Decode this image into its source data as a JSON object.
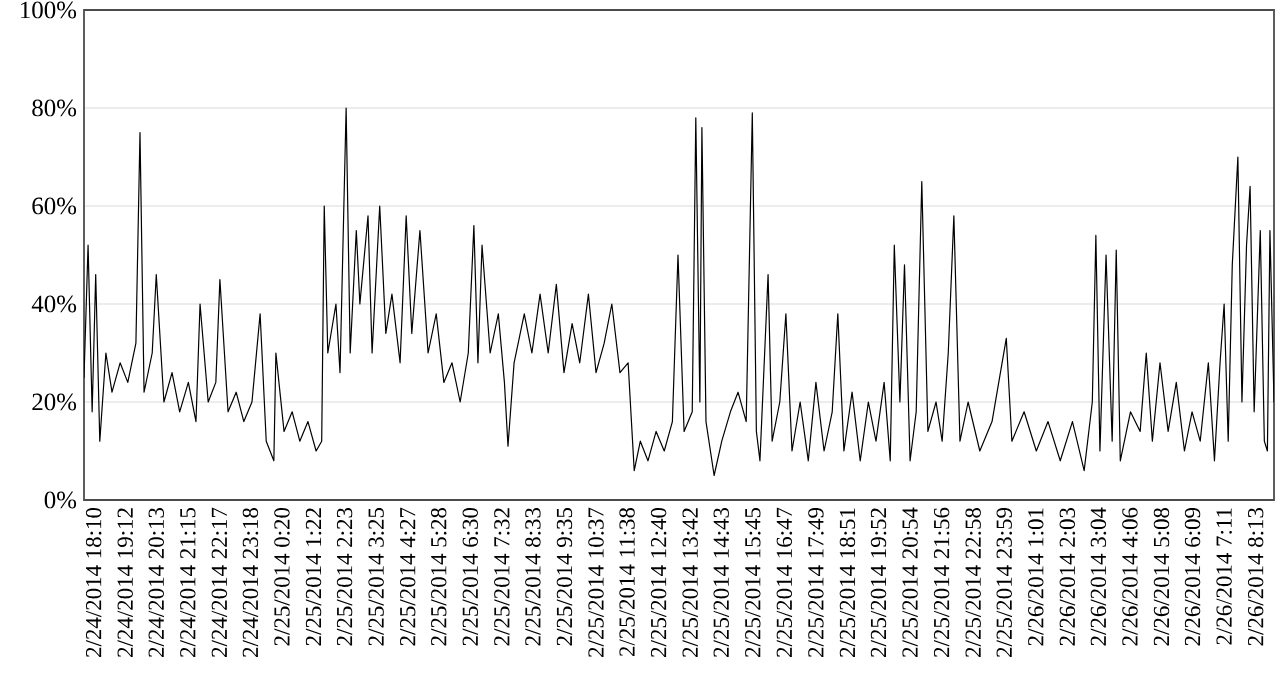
{
  "chart_data": {
    "type": "line",
    "color": "#000000",
    "grid": "y",
    "xlim": [
      "2014-02-24T17:51",
      "2014-02-26T08:49"
    ],
    "ylim": [
      0,
      100
    ],
    "yticks": [
      {
        "value": 0,
        "label": "0%"
      },
      {
        "value": 20,
        "label": "20%"
      },
      {
        "value": 40,
        "label": "40%"
      },
      {
        "value": 60,
        "label": "60%"
      },
      {
        "value": 80,
        "label": "80%"
      },
      {
        "value": 100,
        "label": "100%"
      }
    ],
    "xticks": [
      {
        "value": "2014-02-24T18:10",
        "label": "2/24/2014 18:10"
      },
      {
        "value": "2014-02-24T19:12",
        "label": "2/24/2014 19:12"
      },
      {
        "value": "2014-02-24T20:13",
        "label": "2/24/2014 20:13"
      },
      {
        "value": "2014-02-24T21:15",
        "label": "2/24/2014 21:15"
      },
      {
        "value": "2014-02-24T22:17",
        "label": "2/24/2014 22:17"
      },
      {
        "value": "2014-02-24T23:18",
        "label": "2/24/2014 23:18"
      },
      {
        "value": "2014-02-25T00:20",
        "label": "2/25/2014 0:20"
      },
      {
        "value": "2014-02-25T01:22",
        "label": "2/25/2014 1:22"
      },
      {
        "value": "2014-02-25T02:23",
        "label": "2/25/2014 2:23"
      },
      {
        "value": "2014-02-25T03:25",
        "label": "2/25/2014 3:25"
      },
      {
        "value": "2014-02-25T04:27",
        "label": "2/25/2014 4:27"
      },
      {
        "value": "2014-02-25T05:28",
        "label": "2/25/2014 5:28"
      },
      {
        "value": "2014-02-25T06:30",
        "label": "2/25/2014 6:30"
      },
      {
        "value": "2014-02-25T07:32",
        "label": "2/25/2014 7:32"
      },
      {
        "value": "2014-02-25T08:33",
        "label": "2/25/2014 8:33"
      },
      {
        "value": "2014-02-25T09:35",
        "label": "2/25/2014 9:35"
      },
      {
        "value": "2014-02-25T10:37",
        "label": "2/25/2014 10:37"
      },
      {
        "value": "2014-02-25T11:38",
        "label": "2/25/2014 11:38"
      },
      {
        "value": "2014-02-25T12:40",
        "label": "2/25/2014 12:40"
      },
      {
        "value": "2014-02-25T13:42",
        "label": "2/25/2014 13:42"
      },
      {
        "value": "2014-02-25T14:43",
        "label": "2/25/2014 14:43"
      },
      {
        "value": "2014-02-25T15:45",
        "label": "2/25/2014 15:45"
      },
      {
        "value": "2014-02-25T16:47",
        "label": "2/25/2014 16:47"
      },
      {
        "value": "2014-02-25T17:49",
        "label": "2/25/2014 17:49"
      },
      {
        "value": "2014-02-25T18:51",
        "label": "2/25/2014 18:51"
      },
      {
        "value": "2014-02-25T19:52",
        "label": "2/25/2014 19:52"
      },
      {
        "value": "2014-02-25T20:54",
        "label": "2/25/2014 20:54"
      },
      {
        "value": "2014-02-25T21:56",
        "label": "2/25/2014 21:56"
      },
      {
        "value": "2014-02-25T22:58",
        "label": "2/25/2014 22:58"
      },
      {
        "value": "2014-02-25T23:59",
        "label": "2/25/2014 23:59"
      },
      {
        "value": "2014-02-26T01:01",
        "label": "2/26/2014 1:01"
      },
      {
        "value": "2014-02-26T02:03",
        "label": "2/26/2014 2:03"
      },
      {
        "value": "2014-02-26T03:04",
        "label": "2/26/2014 3:04"
      },
      {
        "value": "2014-02-26T04:06",
        "label": "2/26/2014 4:06"
      },
      {
        "value": "2014-02-26T05:08",
        "label": "2/26/2014 5:08"
      },
      {
        "value": "2014-02-26T06:09",
        "label": "2/26/2014 6:09"
      },
      {
        "value": "2014-02-26T07:11",
        "label": "2/26/2014 7:11"
      },
      {
        "value": "2014-02-26T08:13",
        "label": "2/26/2014 8:13"
      }
    ],
    "x": [
      "2014-02-24T17:51",
      "2014-02-24T17:59",
      "2014-02-24T18:07",
      "2014-02-24T18:14",
      "2014-02-24T18:22",
      "2014-02-24T18:34",
      "2014-02-24T18:46",
      "2014-02-24T19:02",
      "2014-02-24T19:17",
      "2014-02-24T19:33",
      "2014-02-24T19:41",
      "2014-02-24T19:49",
      "2014-02-24T20:05",
      "2014-02-24T20:13",
      "2014-02-24T20:28",
      "2014-02-24T20:44",
      "2014-02-24T20:59",
      "2014-02-24T21:16",
      "2014-02-24T21:31",
      "2014-02-24T21:39",
      "2014-02-24T21:55",
      "2014-02-24T22:10",
      "2014-02-24T22:18",
      "2014-02-24T22:34",
      "2014-02-24T22:50",
      "2014-02-24T23:05",
      "2014-02-24T23:21",
      "2014-02-24T23:37",
      "2014-02-24T23:49",
      "2014-02-25T00:04",
      "2014-02-25T00:08",
      "2014-02-25T00:24",
      "2014-02-25T00:40",
      "2014-02-25T00:55",
      "2014-02-25T01:11",
      "2014-02-25T01:27",
      "2014-02-25T01:38",
      "2014-02-25T01:43",
      "2014-02-25T01:50",
      "2014-02-25T02:06",
      "2014-02-25T02:14",
      "2014-02-25T02:26",
      "2014-02-25T02:34",
      "2014-02-25T02:46",
      "2014-02-25T02:53",
      "2014-02-25T03:09",
      "2014-02-25T03:17",
      "2014-02-25T03:32",
      "2014-02-25T03:44",
      "2014-02-25T03:56",
      "2014-02-25T04:12",
      "2014-02-25T04:24",
      "2014-02-25T04:35",
      "2014-02-25T04:51",
      "2014-02-25T05:07",
      "2014-02-25T05:23",
      "2014-02-25T05:38",
      "2014-02-25T05:54",
      "2014-02-25T06:10",
      "2014-02-25T06:26",
      "2014-02-25T06:37",
      "2014-02-25T06:45",
      "2014-02-25T06:53",
      "2014-02-25T07:09",
      "2014-02-25T07:25",
      "2014-02-25T07:37",
      "2014-02-25T07:44",
      "2014-02-25T07:56",
      "2014-02-25T08:16",
      "2014-02-25T08:31",
      "2014-02-25T08:47",
      "2014-02-25T09:03",
      "2014-02-25T09:19",
      "2014-02-25T09:34",
      "2014-02-25T09:50",
      "2014-02-25T10:05",
      "2014-02-25T10:22",
      "2014-02-25T10:37",
      "2014-02-25T10:53",
      "2014-02-25T11:08",
      "2014-02-25T11:24",
      "2014-02-25T11:40",
      "2014-02-25T11:52",
      "2014-02-25T12:04",
      "2014-02-25T12:19",
      "2014-02-25T12:35",
      "2014-02-25T12:51",
      "2014-02-25T13:07",
      "2014-02-25T13:18",
      "2014-02-25T13:30",
      "2014-02-25T13:46",
      "2014-02-25T13:53",
      "2014-02-25T14:01",
      "2014-02-25T14:05",
      "2014-02-25T14:13",
      "2014-02-25T14:29",
      "2014-02-25T14:44",
      "2014-02-25T15:01",
      "2014-02-25T15:16",
      "2014-02-25T15:32",
      "2014-02-25T15:44",
      "2014-02-25T15:52",
      "2014-02-25T15:59",
      "2014-02-25T16:15",
      "2014-02-25T16:23",
      "2014-02-25T16:38",
      "2014-02-25T16:50",
      "2014-02-25T17:02",
      "2014-02-25T17:18",
      "2014-02-25T17:34",
      "2014-02-25T17:49",
      "2014-02-25T18:05",
      "2014-02-25T18:21",
      "2014-02-25T18:32",
      "2014-02-25T18:44",
      "2014-02-25T19:00",
      "2014-02-25T19:16",
      "2014-02-25T19:32",
      "2014-02-25T19:47",
      "2014-02-25T20:03",
      "2014-02-25T20:15",
      "2014-02-25T20:23",
      "2014-02-25T20:34",
      "2014-02-25T20:43",
      "2014-02-25T20:54",
      "2014-02-25T21:06",
      "2014-02-25T21:17",
      "2014-02-25T21:29",
      "2014-02-25T21:45",
      "2014-02-25T21:57",
      "2014-02-25T22:09",
      "2014-02-25T22:20",
      "2014-02-25T22:32",
      "2014-02-25T22:48",
      "2014-02-25T23:11",
      "2014-02-25T23:35",
      "2014-02-26T00:03",
      "2014-02-26T00:14",
      "2014-02-26T00:38",
      "2014-02-26T01:02",
      "2014-02-26T01:25",
      "2014-02-26T01:49",
      "2014-02-26T02:13",
      "2014-02-26T02:36",
      "2014-02-26T02:52",
      "2014-02-26T02:59",
      "2014-02-26T03:07",
      "2014-02-26T03:19",
      "2014-02-26T03:31",
      "2014-02-26T03:39",
      "2014-02-26T03:47",
      "2014-02-26T04:07",
      "2014-02-26T04:26",
      "2014-02-26T04:38",
      "2014-02-26T04:50",
      "2014-02-26T05:05",
      "2014-02-26T05:21",
      "2014-02-26T05:37",
      "2014-02-26T05:53",
      "2014-02-26T06:08",
      "2014-02-26T06:24",
      "2014-02-26T06:40",
      "2014-02-26T06:52",
      "2014-02-26T07:03",
      "2014-02-26T07:11",
      "2014-02-26T07:19",
      "2014-02-26T07:27",
      "2014-02-26T07:38",
      "2014-02-26T07:46",
      "2014-02-26T07:55",
      "2014-02-26T08:02",
      "2014-02-26T08:10",
      "2014-02-26T08:22",
      "2014-02-26T08:30",
      "2014-02-26T08:36",
      "2014-02-26T08:41",
      "2014-02-26T08:49"
    ],
    "values": [
      25,
      52,
      18,
      46,
      12,
      30,
      22,
      28,
      24,
      32,
      75,
      22,
      30,
      46,
      20,
      26,
      18,
      24,
      16,
      40,
      20,
      24,
      45,
      18,
      22,
      16,
      20,
      38,
      12,
      8,
      30,
      14,
      18,
      12,
      16,
      10,
      12,
      60,
      30,
      40,
      26,
      80,
      30,
      55,
      40,
      58,
      30,
      60,
      34,
      42,
      28,
      58,
      34,
      55,
      30,
      38,
      24,
      28,
      20,
      30,
      56,
      28,
      52,
      30,
      38,
      24,
      11,
      28,
      38,
      30,
      42,
      30,
      44,
      26,
      36,
      28,
      42,
      26,
      32,
      40,
      26,
      28,
      6,
      12,
      8,
      14,
      10,
      16,
      50,
      14,
      18,
      78,
      20,
      76,
      16,
      5,
      12,
      18,
      22,
      16,
      79,
      14,
      8,
      46,
      12,
      20,
      38,
      10,
      20,
      8,
      24,
      10,
      18,
      38,
      10,
      22,
      8,
      20,
      12,
      24,
      8,
      52,
      20,
      48,
      8,
      18,
      65,
      14,
      20,
      12,
      30,
      58,
      12,
      20,
      10,
      16,
      33,
      12,
      18,
      10,
      16,
      8,
      16,
      6,
      20,
      54,
      10,
      50,
      12,
      51,
      8,
      18,
      14,
      30,
      12,
      28,
      14,
      24,
      10,
      18,
      12,
      28,
      8,
      28,
      40,
      12,
      48,
      70,
      20,
      52,
      64,
      18,
      55,
      12,
      10,
      55,
      20
    ]
  }
}
